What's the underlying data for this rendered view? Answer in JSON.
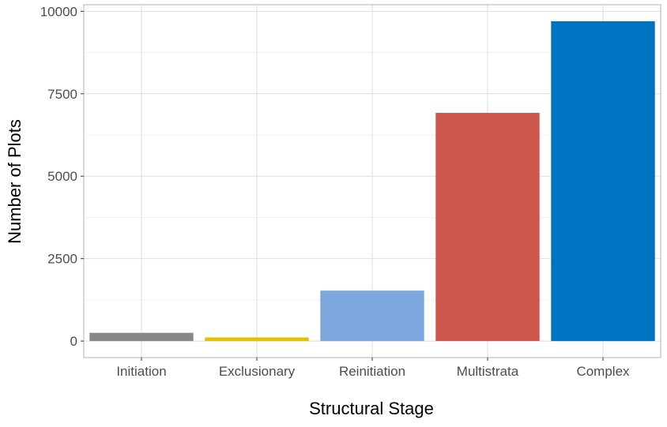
{
  "chart_data": {
    "type": "bar",
    "categories": [
      "Initiation",
      "Exclusionary",
      "Reinitiation",
      "Multistrata",
      "Complex"
    ],
    "values": [
      250,
      110,
      1530,
      6920,
      9700
    ],
    "colors": [
      "#888888",
      "#E5BF00",
      "#7BA7DC",
      "#CD564D",
      "#0072C2"
    ],
    "xlabel": "Structural Stage",
    "ylabel": "Number of Plots",
    "ylim": [
      -500,
      10200
    ],
    "yticks": [
      0,
      2500,
      5000,
      7500,
      10000
    ],
    "ytick_labels": [
      "0",
      "2500",
      "5000",
      "7500",
      "10000"
    ],
    "grid": true,
    "legend": "none"
  }
}
